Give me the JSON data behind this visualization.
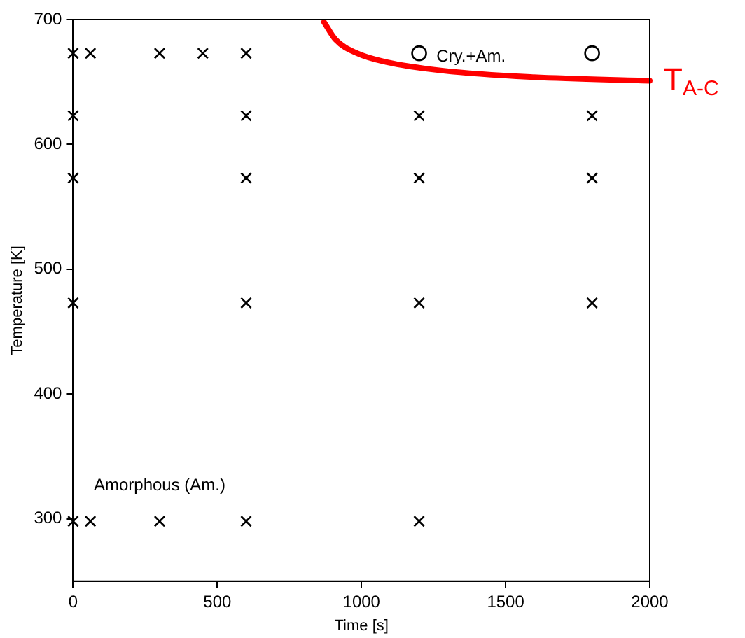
{
  "chart_data": {
    "type": "scatter",
    "xlabel": "Time [s]",
    "ylabel": "Temperature [K]",
    "xlim": [
      0,
      2000
    ],
    "xticks": [
      0,
      500,
      1000,
      1500,
      2000
    ],
    "ylim": [
      250,
      700
    ],
    "yticks": [
      300,
      400,
      500,
      600,
      700
    ],
    "grid": false,
    "legend": false,
    "series": [
      {
        "type": "scatter",
        "marker": "cross",
        "color": "#000000",
        "x": [
          0,
          60,
          300,
          450,
          600,
          0,
          600,
          1200,
          1800,
          0,
          600,
          1200,
          1800,
          0,
          600,
          1200,
          1800,
          0,
          60,
          300,
          600,
          1200
        ],
        "values": [
          673,
          673,
          673,
          673,
          673,
          623,
          623,
          623,
          623,
          573,
          573,
          573,
          573,
          473,
          473,
          473,
          473,
          298,
          298,
          298,
          298,
          298
        ]
      },
      {
        "type": "scatter",
        "marker": "circle",
        "color": "#000000",
        "x": [
          1200,
          1800
        ],
        "values": [
          673,
          673
        ]
      },
      {
        "type": "line",
        "name": "T$_{A-C}$",
        "marker": "none",
        "color": "#ff0000",
        "x": [
          870,
          910,
          985,
          1085,
          1285,
          1585,
          2000
        ],
        "values": [
          698,
          684,
          673,
          666,
          659,
          654,
          651
        ]
      }
    ],
    "annotations": [
      "Cry.+Am.",
      "Amorphous (Am.)"
    ]
  }
}
